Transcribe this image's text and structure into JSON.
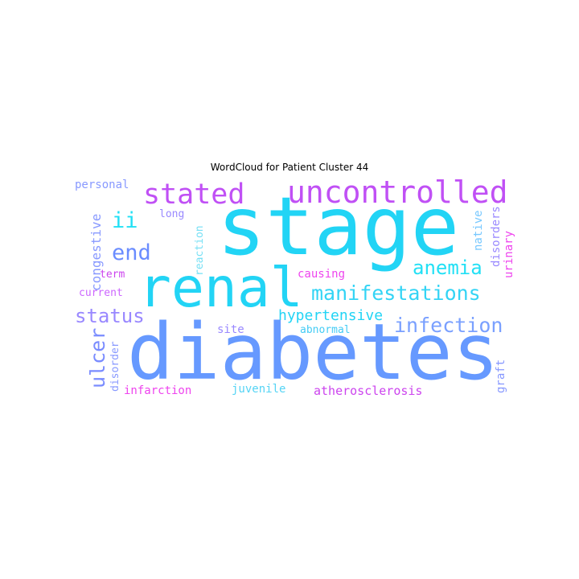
{
  "chart_data": {
    "type": "wordcloud",
    "title": "WordCloud for Patient Cluster 44",
    "words": [
      {
        "text": "stage",
        "color": "#22d4f5"
      },
      {
        "text": "diabetes",
        "color": "#6699ff"
      },
      {
        "text": "renal",
        "color": "#22d4f5"
      },
      {
        "text": "uncontrolled",
        "color": "#c050f5"
      },
      {
        "text": "stated",
        "color": "#c050f5"
      },
      {
        "text": "manifestations",
        "color": "#33d4f5"
      },
      {
        "text": "infection",
        "color": "#7aa0ff"
      },
      {
        "text": "end",
        "color": "#6a8cff"
      },
      {
        "text": "status",
        "color": "#9988ff"
      },
      {
        "text": "anemia",
        "color": "#22e0f5"
      },
      {
        "text": "ulcer",
        "color": "#7a8cff"
      },
      {
        "text": "ii",
        "color": "#22e0f5"
      },
      {
        "text": "hypertensive",
        "color": "#22d4f5"
      },
      {
        "text": "atherosclerosis",
        "color": "#cc44ee"
      },
      {
        "text": "congestive",
        "color": "#8899ff"
      },
      {
        "text": "personal",
        "color": "#8899ff"
      },
      {
        "text": "long",
        "color": "#9988ff"
      },
      {
        "text": "reaction",
        "color": "#77e0f5"
      },
      {
        "text": "native",
        "color": "#77c8ff"
      },
      {
        "text": "disorders",
        "color": "#9988ff"
      },
      {
        "text": "urinary",
        "color": "#ee44ee"
      },
      {
        "text": "term",
        "color": "#cc44ee"
      },
      {
        "text": "current",
        "color": "#cc66ff"
      },
      {
        "text": "causing",
        "color": "#ee44ee"
      },
      {
        "text": "site",
        "color": "#9988ff"
      },
      {
        "text": "abnormal",
        "color": "#44ccf5"
      },
      {
        "text": "disorder",
        "color": "#8899ff"
      },
      {
        "text": "infarction",
        "color": "#ee44ee"
      },
      {
        "text": "juvenile",
        "color": "#55d4f5"
      },
      {
        "text": "graft",
        "color": "#8899ff"
      }
    ]
  }
}
